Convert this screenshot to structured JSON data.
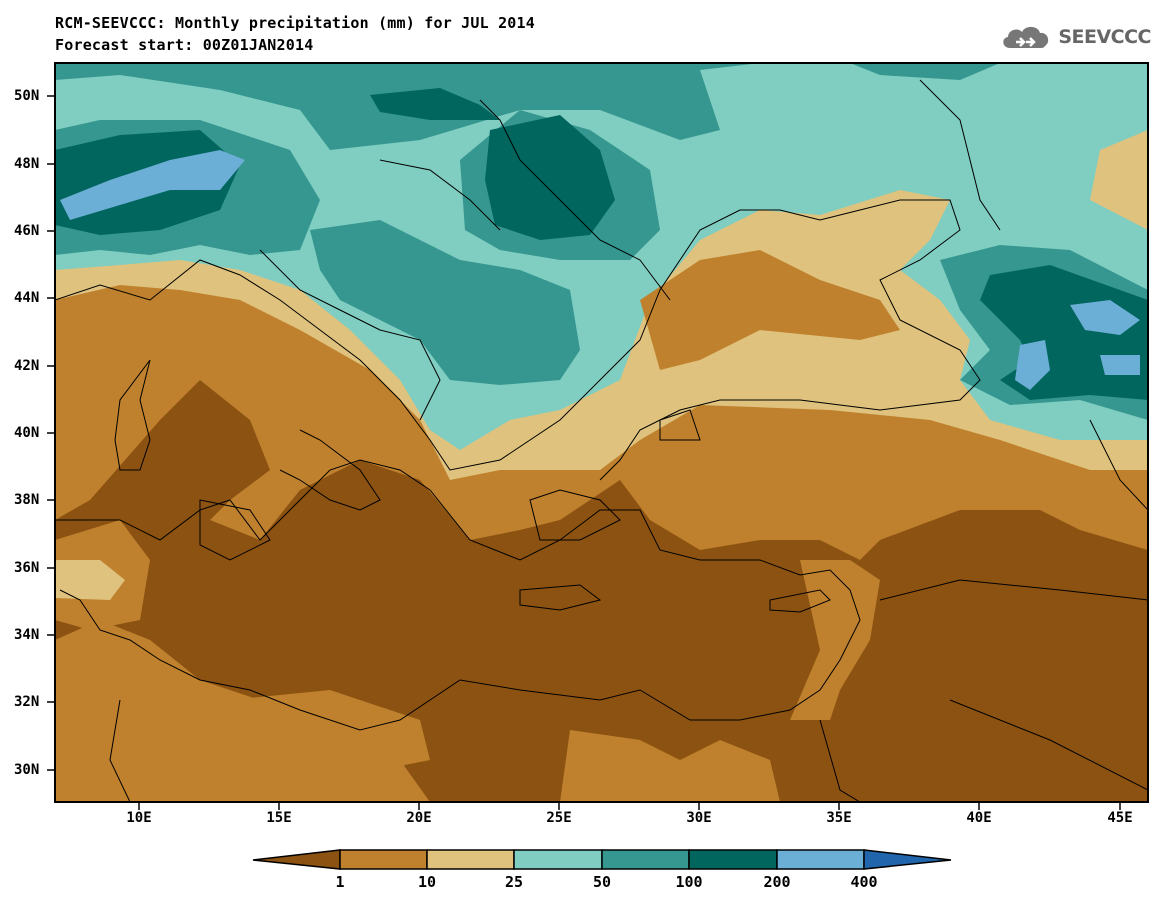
{
  "header": {
    "title": "RCM-SEEVCCC: Monthly precipitation (mm) for JUL 2014",
    "subtitle": "Forecast start: 00Z01JAN2014",
    "logo_text": "SEEVCCC"
  },
  "map": {
    "lat_labels": [
      "50N",
      "48N",
      "46N",
      "44N",
      "42N",
      "40N",
      "38N",
      "36N",
      "34N",
      "32N",
      "30N"
    ],
    "lon_labels": [
      "10E",
      "15E",
      "20E",
      "25E",
      "30E",
      "35E",
      "40E",
      "45E"
    ]
  },
  "colorbar": {
    "labels": [
      "1",
      "10",
      "25",
      "50",
      "100",
      "200",
      "400"
    ],
    "colors": [
      "#8c5212",
      "#bf812d",
      "#dfc27d",
      "#80cdc1",
      "#35978f",
      "#01665e",
      "#6baed6",
      "#2166ac"
    ]
  }
}
